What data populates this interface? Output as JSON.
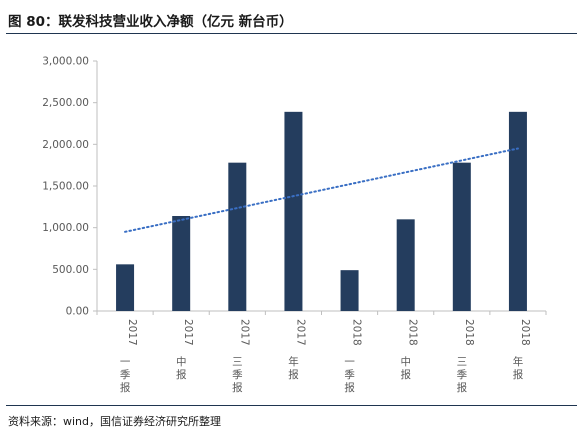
{
  "title": "图 80：联发科技营业收入净额（亿元 新台币）",
  "source": "资料来源：wind，国信证券经济研究所整理",
  "chart_data": {
    "type": "bar",
    "categories": [
      "2017一季报",
      "2017中报",
      "2017三季报",
      "2017年报",
      "2018一季报",
      "2018中报",
      "2018三季报",
      "2018年报"
    ],
    "category_label_parts": [
      [
        "2017",
        "一季",
        "报"
      ],
      [
        "2017",
        "中",
        "报"
      ],
      [
        "2017",
        "三季",
        "报"
      ],
      [
        "2017",
        "年",
        "报"
      ],
      [
        "2018",
        "一季",
        "报"
      ],
      [
        "2018",
        "中",
        "报"
      ],
      [
        "2018",
        "三季",
        "报"
      ],
      [
        "2018",
        "年",
        "报"
      ]
    ],
    "values": [
      560,
      1140,
      1780,
      2390,
      490,
      1100,
      1780,
      2390
    ],
    "trendline": {
      "style": "dotted",
      "start": 950,
      "end": 1950
    },
    "ylim": [
      0,
      3000
    ],
    "yticks": [
      0,
      500,
      1000,
      1500,
      2000,
      2500,
      3000
    ],
    "ytick_labels": [
      "0.00",
      "500.00",
      "1,000.00",
      "1,500.00",
      "2,000.00",
      "2,500.00",
      "3,000.00"
    ],
    "xlabel": "",
    "ylabel": "",
    "grid": false,
    "legend": "none",
    "colors": {
      "bar": "#243d5e",
      "trend": "#3a6fc4",
      "axis": "#bfbfbf"
    }
  }
}
